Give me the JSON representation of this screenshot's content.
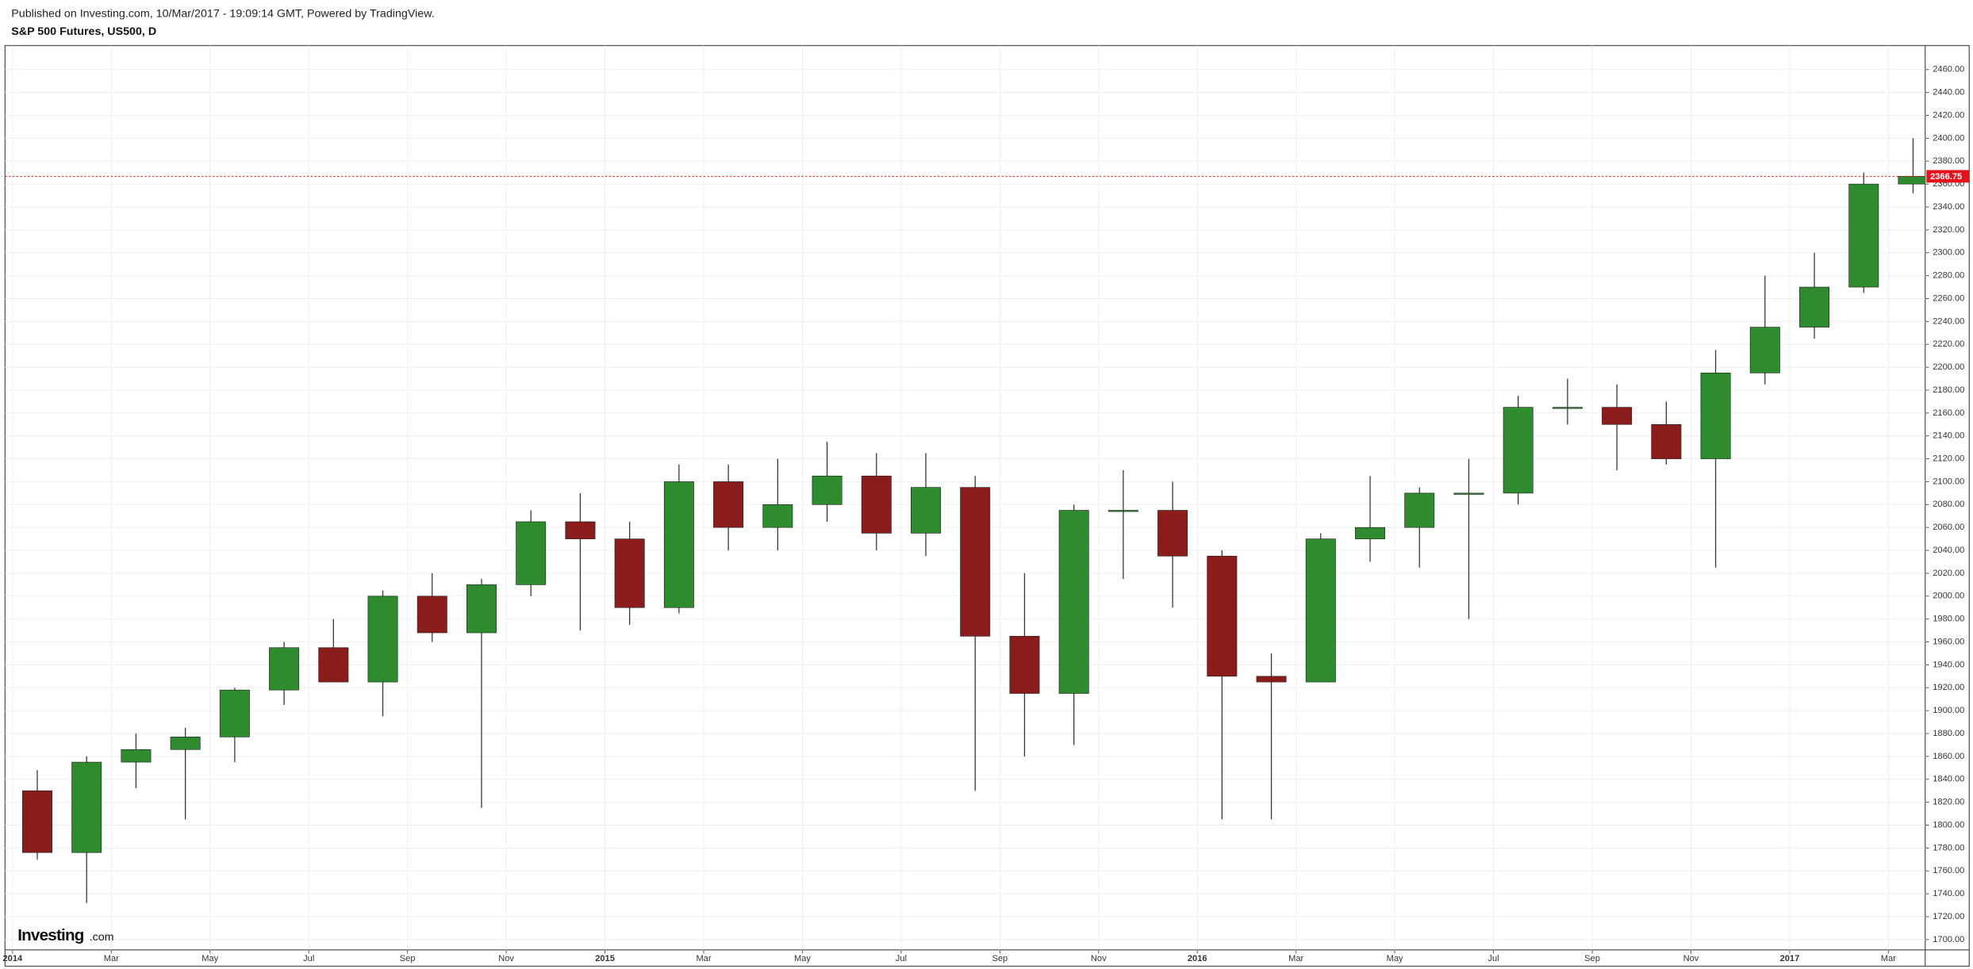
{
  "chart_data": {
    "type": "candlestick",
    "header": "Published on Investing.com, 10/Mar/2017 - 19:09:14 GMT, Powered by TradingView.",
    "title": "S&P 500 Futures, US500, D",
    "watermark": {
      "brand": "Investing",
      "suffix": ".com"
    },
    "up_color": "#2e8b2e",
    "down_color": "#8b1c1c",
    "grid": true,
    "x": [
      "2014-01",
      "2014-02",
      "2014-03",
      "2014-04",
      "2014-05",
      "2014-06",
      "2014-07",
      "2014-08",
      "2014-09",
      "2014-10",
      "2014-11",
      "2014-12",
      "2015-01",
      "2015-02",
      "2015-03",
      "2015-04",
      "2015-05",
      "2015-06",
      "2015-07",
      "2015-08",
      "2015-09",
      "2015-10",
      "2015-11",
      "2015-12",
      "2016-01",
      "2016-02",
      "2016-03",
      "2016-04",
      "2016-05",
      "2016-06",
      "2016-07",
      "2016-08",
      "2016-09",
      "2016-10",
      "2016-11",
      "2016-12",
      "2017-01",
      "2017-02",
      "2017-03"
    ],
    "open": [
      1830,
      1776,
      1855,
      1866,
      1877,
      1918,
      1955,
      1925,
      2000,
      1968,
      2010,
      2065,
      2050,
      1990,
      2100,
      2060,
      2080,
      2105,
      2055,
      2095,
      1965,
      1915,
      2075,
      2075,
      2035,
      1930,
      1925,
      2050,
      2060,
      2090,
      2090,
      2165,
      2165,
      2150,
      2120,
      2195,
      2235,
      2270,
      2360
    ],
    "high": [
      1848,
      1860,
      1880,
      1885,
      1920,
      1960,
      1980,
      2005,
      2020,
      2015,
      2075,
      2090,
      2065,
      2115,
      2115,
      2120,
      2135,
      2125,
      2125,
      2105,
      2020,
      2080,
      2110,
      2100,
      2040,
      1950,
      2055,
      2105,
      2095,
      2120,
      2175,
      2190,
      2185,
      2170,
      2215,
      2280,
      2300,
      2370,
      2400
    ],
    "low": [
      1770,
      1732,
      1832,
      1805,
      1855,
      1905,
      1925,
      1895,
      1960,
      1815,
      2000,
      1970,
      1975,
      1985,
      2040,
      2040,
      2065,
      2040,
      2035,
      1830,
      1860,
      1870,
      2015,
      1990,
      1805,
      1805,
      1925,
      2030,
      2025,
      1980,
      2080,
      2150,
      2110,
      2115,
      2025,
      2185,
      2225,
      2265,
      2352
    ],
    "close": [
      1776,
      1855,
      1866,
      1877,
      1918,
      1955,
      1925,
      2000,
      1968,
      2010,
      2065,
      2050,
      1990,
      2100,
      2060,
      2080,
      2105,
      2055,
      2095,
      1965,
      1915,
      2075,
      2075,
      2035,
      1930,
      1925,
      2050,
      2060,
      2090,
      2090,
      2165,
      2165,
      2150,
      2120,
      2195,
      2235,
      2270,
      2360,
      2366.75
    ],
    "xlim": [
      "2014-01",
      "2017-04"
    ],
    "xticks": [
      {
        "value": "2014-01",
        "label": "2014"
      },
      {
        "value": "2014-03",
        "label": "Mar"
      },
      {
        "value": "2014-05",
        "label": "May"
      },
      {
        "value": "2014-07",
        "label": "Jul"
      },
      {
        "value": "2014-09",
        "label": "Sep"
      },
      {
        "value": "2014-11",
        "label": "Nov"
      },
      {
        "value": "2015-01",
        "label": "2015"
      },
      {
        "value": "2015-03",
        "label": "Mar"
      },
      {
        "value": "2015-05",
        "label": "May"
      },
      {
        "value": "2015-07",
        "label": "Jul"
      },
      {
        "value": "2015-09",
        "label": "Sep"
      },
      {
        "value": "2015-11",
        "label": "Nov"
      },
      {
        "value": "2016-01",
        "label": "2016"
      },
      {
        "value": "2016-03",
        "label": "Mar"
      },
      {
        "value": "2016-05",
        "label": "May"
      },
      {
        "value": "2016-07",
        "label": "Jul"
      },
      {
        "value": "2016-09",
        "label": "Sep"
      },
      {
        "value": "2016-11",
        "label": "Nov"
      },
      {
        "value": "2017-01",
        "label": "2017"
      },
      {
        "value": "2017-03",
        "label": "Mar"
      }
    ],
    "ylim": [
      1691,
      2481
    ],
    "yticks": [
      {
        "value": 1700,
        "label": "1700.00"
      },
      {
        "value": 1720,
        "label": "1720.00"
      },
      {
        "value": 1740,
        "label": "1740.00"
      },
      {
        "value": 1760,
        "label": "1760.00"
      },
      {
        "value": 1780,
        "label": "1780.00"
      },
      {
        "value": 1800,
        "label": "1800.00"
      },
      {
        "value": 1820,
        "label": "1820.00"
      },
      {
        "value": 1840,
        "label": "1840.00"
      },
      {
        "value": 1860,
        "label": "1860.00"
      },
      {
        "value": 1880,
        "label": "1880.00"
      },
      {
        "value": 1900,
        "label": "1900.00"
      },
      {
        "value": 1920,
        "label": "1920.00"
      },
      {
        "value": 1940,
        "label": "1940.00"
      },
      {
        "value": 1960,
        "label": "1960.00"
      },
      {
        "value": 1980,
        "label": "1980.00"
      },
      {
        "value": 2000,
        "label": "2000.00"
      },
      {
        "value": 2020,
        "label": "2020.00"
      },
      {
        "value": 2040,
        "label": "2040.00"
      },
      {
        "value": 2060,
        "label": "2060.00"
      },
      {
        "value": 2080,
        "label": "2080.00"
      },
      {
        "value": 2100,
        "label": "2100.00"
      },
      {
        "value": 2120,
        "label": "2120.00"
      },
      {
        "value": 2140,
        "label": "2140.00"
      },
      {
        "value": 2160,
        "label": "2160.00"
      },
      {
        "value": 2180,
        "label": "2180.00"
      },
      {
        "value": 2200,
        "label": "2200.00"
      },
      {
        "value": 2220,
        "label": "2220.00"
      },
      {
        "value": 2240,
        "label": "2240.00"
      },
      {
        "value": 2260,
        "label": "2260.00"
      },
      {
        "value": 2280,
        "label": "2280.00"
      },
      {
        "value": 2300,
        "label": "2300.00"
      },
      {
        "value": 2320,
        "label": "2320.00"
      },
      {
        "value": 2340,
        "label": "2340.00"
      },
      {
        "value": 2360,
        "label": "2360.00"
      },
      {
        "value": 2380,
        "label": "2380.00"
      },
      {
        "value": 2400,
        "label": "2400.00"
      },
      {
        "value": 2420,
        "label": "2420.00"
      },
      {
        "value": 2440,
        "label": "2440.00"
      },
      {
        "value": 2460,
        "label": "2460.00"
      }
    ],
    "last_price": 2366.75,
    "last_price_color": "#e4131b"
  }
}
